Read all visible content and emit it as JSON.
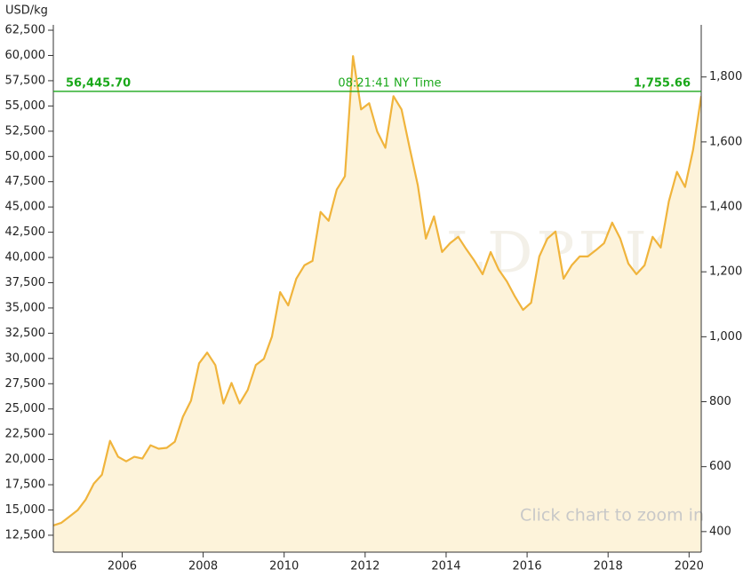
{
  "chart_data": {
    "type": "line",
    "y_label": "USD/kg",
    "x": [
      2004.3,
      2004.5,
      2004.7,
      2004.9,
      2005.1,
      2005.3,
      2005.5,
      2005.7,
      2005.9,
      2006.1,
      2006.3,
      2006.5,
      2006.7,
      2006.9,
      2007.1,
      2007.3,
      2007.5,
      2007.7,
      2007.9,
      2008.1,
      2008.3,
      2008.5,
      2008.7,
      2008.9,
      2009.1,
      2009.3,
      2009.5,
      2009.7,
      2009.9,
      2010.1,
      2010.3,
      2010.5,
      2010.7,
      2010.9,
      2011.1,
      2011.3,
      2011.5,
      2011.7,
      2011.9,
      2012.1,
      2012.3,
      2012.5,
      2012.7,
      2012.9,
      2013.1,
      2013.3,
      2013.5,
      2013.7,
      2013.9,
      2014.1,
      2014.3,
      2014.5,
      2014.7,
      2014.9,
      2015.1,
      2015.3,
      2015.5,
      2015.7,
      2015.9,
      2016.1,
      2016.3,
      2016.5,
      2016.7,
      2016.9,
      2017.1,
      2017.3,
      2017.5,
      2017.7,
      2017.9,
      2018.1,
      2018.3,
      2018.5,
      2018.7,
      2018.9,
      2019.1,
      2019.3,
      2019.5,
      2019.7,
      2019.9,
      2020.1,
      2020.3
    ],
    "values": [
      13470,
      13730,
      14350,
      14970,
      16030,
      17620,
      18500,
      21850,
      20260,
      19820,
      20260,
      20090,
      21410,
      21060,
      21150,
      21760,
      24230,
      25820,
      29520,
      30580,
      29340,
      25550,
      27580,
      25550,
      26880,
      29340,
      29960,
      32170,
      36570,
      35250,
      37900,
      39220,
      39660,
      44510,
      43630,
      46720,
      48040,
      59940,
      54650,
      55270,
      52450,
      50860,
      55970,
      54650,
      50860,
      47160,
      41870,
      44070,
      40540,
      41420,
      42040,
      40810,
      39660,
      38340,
      40540,
      38780,
      37630,
      36130,
      34810,
      35520,
      40100,
      41870,
      42570,
      37900,
      39220,
      40100,
      40100,
      40720,
      41420,
      43450,
      41870,
      39400,
      38340,
      39220,
      42040,
      40980,
      45570,
      48480,
      46980,
      50680,
      55970
    ],
    "color": "#f0b43c",
    "fill": "#fdf3da",
    "xlim": [
      2004.3,
      2020.3
    ],
    "xticks": [
      2006,
      2008,
      2010,
      2012,
      2014,
      2016,
      2018,
      2020
    ],
    "ylim": [
      10825,
      63030
    ],
    "yticks": [
      {
        "value": 12500,
        "label": "12,500"
      },
      {
        "value": 15000,
        "label": "15,000"
      },
      {
        "value": 17500,
        "label": "17,500"
      },
      {
        "value": 20000,
        "label": "20,000"
      },
      {
        "value": 22500,
        "label": "22,500"
      },
      {
        "value": 25000,
        "label": "25,000"
      },
      {
        "value": 27500,
        "label": "27,500"
      },
      {
        "value": 30000,
        "label": "30,000"
      },
      {
        "value": 32500,
        "label": "32,500"
      },
      {
        "value": 35000,
        "label": "35,000"
      },
      {
        "value": 37500,
        "label": "37,500"
      },
      {
        "value": 40000,
        "label": "40,000"
      },
      {
        "value": 42500,
        "label": "42,500"
      },
      {
        "value": 45000,
        "label": "45,000"
      },
      {
        "value": 47500,
        "label": "47,500"
      },
      {
        "value": 50000,
        "label": "50,000"
      },
      {
        "value": 52500,
        "label": "52,500"
      },
      {
        "value": 55000,
        "label": "55,000"
      },
      {
        "value": 57500,
        "label": "57,500"
      },
      {
        "value": 60000,
        "label": "60,000"
      },
      {
        "value": 62500,
        "label": "62,500"
      }
    ],
    "y2lim": [
      336.7,
      1960.5
    ],
    "y2ticks": [
      400,
      600,
      800,
      {
        "value": 1000,
        "label": "1,000"
      },
      {
        "value": 1200,
        "label": "1,200"
      },
      {
        "value": 1400,
        "label": "1,400"
      },
      {
        "value": 1600,
        "label": "1,600"
      },
      {
        "value": 1800,
        "label": "1,800"
      }
    ],
    "price_line": {
      "value": 56445.7,
      "value_label": "56,445.70",
      "value2": 1755.66,
      "value2_label": "1,755.66",
      "time": "08:21:41 NY Time",
      "color": "#1aa81a"
    },
    "annotation": "Click chart to zoom in",
    "watermark": "GOLDPRICE.ORG"
  }
}
